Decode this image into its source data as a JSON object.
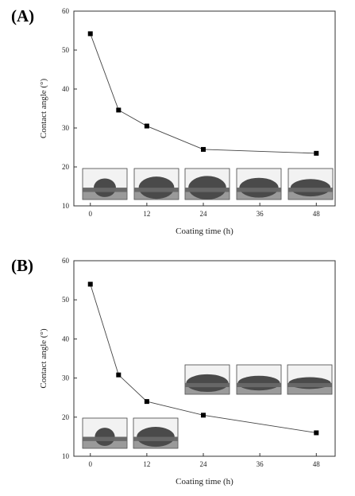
{
  "chart_data": [
    {
      "panel_label": "(A)",
      "type": "line",
      "marker": "square",
      "x": [
        0,
        6,
        12,
        24,
        48
      ],
      "y": [
        54.2,
        34.6,
        30.5,
        24.5,
        23.5
      ],
      "xlabel": "Coating time (h)",
      "ylabel": "Contact angle (°)",
      "xticks": [
        0,
        12,
        24,
        36,
        48
      ],
      "yticks": [
        10,
        20,
        30,
        40,
        50,
        60
      ],
      "xlim": [
        -3.5,
        52
      ],
      "ylim": [
        10,
        60
      ],
      "insets": [
        {
          "x_center": 1.2,
          "droplet_height": 0.3,
          "droplet_width": 0.5
        },
        {
          "x_center": 13.0,
          "droplet_height": 0.36,
          "droplet_width": 0.8
        },
        {
          "x_center": 24.8,
          "droplet_height": 0.38,
          "droplet_width": 0.85
        },
        {
          "x_center": 36.4,
          "droplet_height": 0.32,
          "droplet_width": 0.88
        },
        {
          "x_center": 48.0,
          "droplet_height": 0.28,
          "droplet_width": 0.9
        }
      ]
    },
    {
      "panel_label": "(B)",
      "type": "line",
      "marker": "square",
      "x": [
        0,
        6,
        12,
        24,
        48
      ],
      "y": [
        54.0,
        30.8,
        24.0,
        20.5,
        16.0
      ],
      "xlabel": "Coating time (h)",
      "ylabel": "Contact angle (°)",
      "xticks": [
        0,
        12,
        24,
        36,
        48
      ],
      "yticks": [
        10,
        20,
        30,
        40,
        50,
        60
      ],
      "xlim": [
        -3.5,
        52
      ],
      "ylim": [
        10,
        60
      ],
      "insets": [
        {
          "x_center": 1.5,
          "droplet_height": 0.3,
          "droplet_width": 0.45
        },
        {
          "x_center": 13.0,
          "droplet_height": 0.33,
          "droplet_width": 0.85
        },
        {
          "x_center": 25.0,
          "droplet_height": 0.3,
          "droplet_width": 0.95
        },
        {
          "x_center": 36.5,
          "droplet_height": 0.25,
          "droplet_width": 0.95
        },
        {
          "x_center": 48.2,
          "droplet_height": 0.2,
          "droplet_width": 0.95
        }
      ]
    }
  ]
}
